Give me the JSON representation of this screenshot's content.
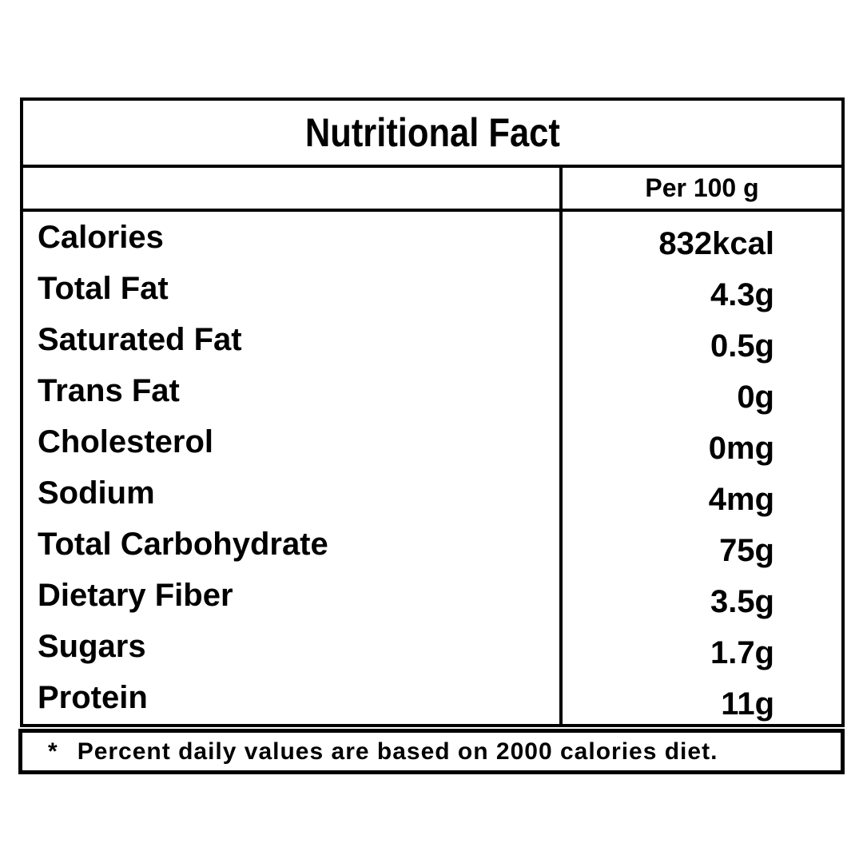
{
  "table": {
    "title": "Nutritional Fact",
    "column_header": "Per 100 g",
    "rows": [
      {
        "label": "Calories",
        "value": "832kcal"
      },
      {
        "label": "Total Fat",
        "value": "4.3g"
      },
      {
        "label": "Saturated Fat",
        "value": "0.5g"
      },
      {
        "label": "Trans Fat",
        "value": "0g"
      },
      {
        "label": "Cholesterol",
        "value": "0mg"
      },
      {
        "label": "Sodium",
        "value": "4mg"
      },
      {
        "label": "Total Carbohydrate",
        "value": "75g"
      },
      {
        "label": "Dietary Fiber",
        "value": "3.5g"
      },
      {
        "label": "Sugars",
        "value": "1.7g"
      },
      {
        "label": "Protein",
        "value": "11g"
      }
    ],
    "footnote_marker": "*",
    "footnote_text": "Percent daily values are based on 2000 calories diet."
  },
  "colors": {
    "border": "#000000",
    "background": "#ffffff",
    "text": "#000000"
  }
}
